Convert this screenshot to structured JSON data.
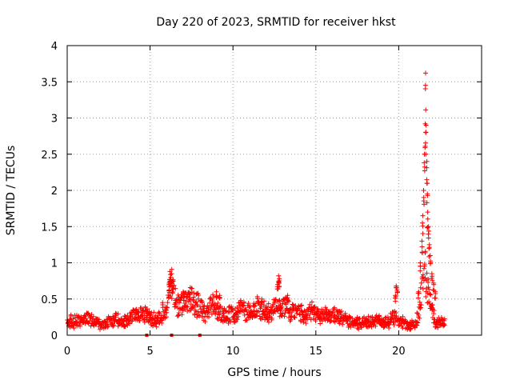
{
  "chart_data": {
    "type": "scatter",
    "title": "Day 220 of 2023, SRMTID for receiver hkst",
    "xlabel": "GPS time / hours",
    "ylabel": "SRMTID / TECUs",
    "xlim": [
      0,
      25
    ],
    "ylim": [
      0,
      4
    ],
    "xticks": [
      "0",
      "5",
      "10",
      "15",
      "20"
    ],
    "yticks": [
      "0",
      "0.5",
      "1",
      "1.5",
      "2",
      "2.5",
      "3",
      "3.5",
      "4"
    ],
    "grid": true,
    "marker": "plus",
    "color": "#ff0000",
    "series": [
      {
        "name": "SRMTID",
        "envelope": [
          [
            0.0,
            0.18
          ],
          [
            0.3,
            0.2
          ],
          [
            0.6,
            0.22
          ],
          [
            0.9,
            0.2
          ],
          [
            1.2,
            0.24
          ],
          [
            1.5,
            0.22
          ],
          [
            1.8,
            0.18
          ],
          [
            2.1,
            0.16
          ],
          [
            2.4,
            0.18
          ],
          [
            2.7,
            0.2
          ],
          [
            3.0,
            0.22
          ],
          [
            3.3,
            0.18
          ],
          [
            3.6,
            0.2
          ],
          [
            3.9,
            0.25
          ],
          [
            4.2,
            0.28
          ],
          [
            4.5,
            0.3
          ],
          [
            4.8,
            0.32
          ],
          [
            5.1,
            0.25
          ],
          [
            5.4,
            0.2
          ],
          [
            5.7,
            0.3
          ],
          [
            6.0,
            0.45
          ],
          [
            6.3,
            0.75
          ],
          [
            6.6,
            0.4
          ],
          [
            6.9,
            0.45
          ],
          [
            7.2,
            0.55
          ],
          [
            7.5,
            0.5
          ],
          [
            7.8,
            0.45
          ],
          [
            8.1,
            0.38
          ],
          [
            8.4,
            0.32
          ],
          [
            8.7,
            0.45
          ],
          [
            9.0,
            0.35
          ],
          [
            9.3,
            0.3
          ],
          [
            9.6,
            0.28
          ],
          [
            9.9,
            0.32
          ],
          [
            10.2,
            0.3
          ],
          [
            10.5,
            0.38
          ],
          [
            10.8,
            0.35
          ],
          [
            11.1,
            0.3
          ],
          [
            11.4,
            0.42
          ],
          [
            11.7,
            0.4
          ],
          [
            12.0,
            0.35
          ],
          [
            12.3,
            0.32
          ],
          [
            12.6,
            0.45
          ],
          [
            12.9,
            0.38
          ],
          [
            13.2,
            0.42
          ],
          [
            13.5,
            0.35
          ],
          [
            13.8,
            0.3
          ],
          [
            14.1,
            0.32
          ],
          [
            14.4,
            0.28
          ],
          [
            14.7,
            0.35
          ],
          [
            15.0,
            0.3
          ],
          [
            15.3,
            0.28
          ],
          [
            15.6,
            0.3
          ],
          [
            15.9,
            0.3
          ],
          [
            16.2,
            0.28
          ],
          [
            16.5,
            0.26
          ],
          [
            16.8,
            0.22
          ],
          [
            17.1,
            0.2
          ],
          [
            17.4,
            0.18
          ],
          [
            17.7,
            0.16
          ],
          [
            18.0,
            0.18
          ],
          [
            18.3,
            0.2
          ],
          [
            18.6,
            0.22
          ],
          [
            18.9,
            0.2
          ],
          [
            19.2,
            0.18
          ],
          [
            19.5,
            0.22
          ],
          [
            19.8,
            0.3
          ],
          [
            20.1,
            0.2
          ],
          [
            20.4,
            0.16
          ],
          [
            20.7,
            0.14
          ],
          [
            21.0,
            0.15
          ],
          [
            21.2,
            0.3
          ],
          [
            21.4,
            0.7
          ],
          [
            21.6,
            0.9
          ],
          [
            21.8,
            0.6
          ],
          [
            22.0,
            0.35
          ],
          [
            22.2,
            0.2
          ],
          [
            22.5,
            0.16
          ],
          [
            22.8,
            0.2
          ]
        ],
        "peaks": [
          [
            6.2,
            0.88
          ],
          [
            6.3,
            0.85
          ],
          [
            6.25,
            0.8
          ],
          [
            6.15,
            0.72
          ],
          [
            6.35,
            0.65
          ],
          [
            7.0,
            0.6
          ],
          [
            7.4,
            0.58
          ],
          [
            9.0,
            0.6
          ],
          [
            9.2,
            0.55
          ],
          [
            12.75,
            0.82
          ],
          [
            12.8,
            0.78
          ],
          [
            12.7,
            0.7
          ],
          [
            13.3,
            0.55
          ],
          [
            19.85,
            0.68
          ],
          [
            19.9,
            0.62
          ],
          [
            19.8,
            0.55
          ],
          [
            21.2,
            0.6
          ],
          [
            21.3,
            1.0
          ],
          [
            21.4,
            1.3
          ],
          [
            21.45,
            1.65
          ],
          [
            21.5,
            2.0
          ],
          [
            21.55,
            2.5
          ],
          [
            21.6,
            2.92
          ],
          [
            21.65,
            2.9
          ],
          [
            21.62,
            3.62
          ],
          [
            21.7,
            2.4
          ],
          [
            21.72,
            2.1
          ],
          [
            21.75,
            1.7
          ],
          [
            21.8,
            1.5
          ],
          [
            21.85,
            1.25
          ],
          [
            21.9,
            1.1
          ],
          [
            22.0,
            0.85
          ],
          [
            22.1,
            0.72
          ],
          [
            22.2,
            0.6
          ]
        ],
        "baseline_markers": [
          [
            4.8,
            0.0
          ],
          [
            6.3,
            0.0
          ],
          [
            8.0,
            0.0
          ]
        ]
      }
    ]
  }
}
